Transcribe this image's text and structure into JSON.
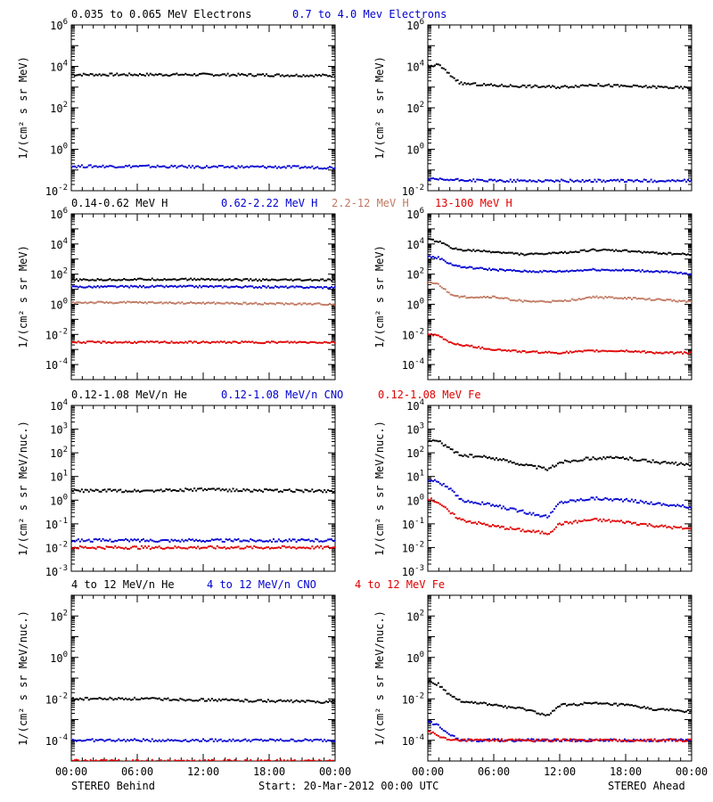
{
  "footer": {
    "left": "STEREO Behind",
    "center": "Start: 20-Mar-2012 00:00 UTC",
    "right": "STEREO Ahead"
  },
  "colors": {
    "black": "#000000",
    "blue": "#0000d0",
    "tan": "#c07860",
    "red": "#e00000"
  },
  "chart_data": [
    {
      "type": "scatter",
      "title_segments": [
        {
          "text": "0.035 to 0.065 MeV Electrons",
          "color": "#000000"
        },
        {
          "text": "0.7 to 4.0 Mev Electrons",
          "color": "#0000d0"
        }
      ],
      "ylabel": "1/(cm² s sr MeV)",
      "yscale": "log",
      "ylim": [
        -2,
        6
      ],
      "ytick_exponents": [
        -2,
        0,
        2,
        4,
        6
      ],
      "xlim": [
        "00:00",
        "24:00"
      ],
      "xtick_labels": [
        "00:00",
        "06:00",
        "12:00",
        "18:00",
        "00:00"
      ],
      "left": {
        "spacecraft": "STEREO Behind",
        "series": [
          {
            "color": "#000000",
            "x": [
              0,
              6,
              12,
              18,
              24
            ],
            "y": [
              4000,
              4000,
              4000,
              3800,
              3600
            ]
          },
          {
            "color": "#0000d0",
            "x": [
              0,
              6,
              12,
              18,
              24
            ],
            "y": [
              0.15,
              0.15,
              0.14,
              0.14,
              0.13
            ]
          }
        ]
      },
      "right": {
        "spacecraft": "STEREO Ahead",
        "series": [
          {
            "color": "#000000",
            "x": [
              0,
              1,
              2,
              3,
              6,
              9,
              12,
              15,
              18,
              21,
              24
            ],
            "y": [
              10000,
              12000,
              4000,
              1500,
              1200,
              1100,
              1000,
              1300,
              1100,
              1000,
              900
            ]
          },
          {
            "color": "#0000d0",
            "x": [
              0,
              6,
              12,
              18,
              24
            ],
            "y": [
              0.035,
              0.03,
              0.03,
              0.03,
              0.03
            ]
          }
        ]
      }
    },
    {
      "type": "scatter",
      "title_segments": [
        {
          "text": "0.14-0.62 MeV H",
          "color": "#000000"
        },
        {
          "text": "0.62-2.22 MeV H",
          "color": "#0000d0"
        },
        {
          "text": "2.2-12 MeV H",
          "color": "#c07860"
        },
        {
          "text": "13-100 MeV H",
          "color": "#e00000"
        }
      ],
      "ylabel": "1/(cm² s sr MeV)",
      "yscale": "log",
      "ylim": [
        -5,
        6
      ],
      "ytick_exponents": [
        -4,
        -2,
        0,
        2,
        4,
        6
      ],
      "xlim": [
        "00:00",
        "24:00"
      ],
      "xtick_labels": [
        "00:00",
        "06:00",
        "12:00",
        "18:00",
        "00:00"
      ],
      "left": {
        "spacecraft": "STEREO Behind",
        "series": [
          {
            "color": "#000000",
            "x": [
              0,
              6,
              12,
              18,
              24
            ],
            "y": [
              40,
              45,
              45,
              40,
              40
            ]
          },
          {
            "color": "#0000d0",
            "x": [
              0,
              6,
              12,
              18,
              24
            ],
            "y": [
              14,
              15,
              15,
              14,
              13
            ]
          },
          {
            "color": "#c07860",
            "x": [
              0,
              6,
              12,
              18,
              24
            ],
            "y": [
              1.3,
              1.3,
              1.2,
              1.1,
              1.0
            ]
          },
          {
            "color": "#e00000",
            "x": [
              0,
              6,
              12,
              18,
              24
            ],
            "y": [
              0.003,
              0.003,
              0.003,
              0.003,
              0.003
            ]
          }
        ]
      },
      "right": {
        "spacecraft": "STEREO Ahead",
        "series": [
          {
            "color": "#000000",
            "x": [
              0,
              1,
              2,
              3,
              6,
              9,
              12,
              15,
              18,
              21,
              24
            ],
            "y": [
              20000,
              15000,
              6000,
              4000,
              3000,
              2000,
              2500,
              4000,
              3500,
              2500,
              2000
            ]
          },
          {
            "color": "#0000d0",
            "x": [
              0,
              1,
              2,
              3,
              6,
              9,
              12,
              15,
              18,
              21,
              24
            ],
            "y": [
              1500,
              1200,
              500,
              300,
              200,
              150,
              150,
              200,
              180,
              150,
              100
            ]
          },
          {
            "color": "#c07860",
            "x": [
              0,
              1,
              2,
              3,
              6,
              9,
              12,
              15,
              18,
              21,
              24
            ],
            "y": [
              30,
              20,
              5,
              3,
              3,
              1.5,
              1.5,
              3,
              2.5,
              2,
              1.5
            ]
          },
          {
            "color": "#e00000",
            "x": [
              0,
              1,
              2,
              3,
              6,
              9,
              12,
              15,
              18,
              21,
              24
            ],
            "y": [
              0.01,
              0.008,
              0.003,
              0.002,
              0.001,
              0.0007,
              0.0006,
              0.0008,
              0.0008,
              0.0006,
              0.0006
            ]
          }
        ]
      }
    },
    {
      "type": "scatter",
      "title_segments": [
        {
          "text": "0.12-1.08 MeV/n He",
          "color": "#000000"
        },
        {
          "text": "0.12-1.08 MeV/n CNO",
          "color": "#0000d0"
        },
        {
          "text": "0.12-1.08 MeV Fe",
          "color": "#e00000"
        }
      ],
      "ylabel": "1/(cm² s sr MeV/nuc.)",
      "yscale": "log",
      "ylim": [
        -3,
        4
      ],
      "ytick_exponents": [
        -3,
        -2,
        -1,
        0,
        1,
        2,
        3,
        4
      ],
      "xlim": [
        "00:00",
        "24:00"
      ],
      "xtick_labels": [
        "00:00",
        "06:00",
        "12:00",
        "18:00",
        "00:00"
      ],
      "left": {
        "spacecraft": "STEREO Behind",
        "series": [
          {
            "color": "#000000",
            "x": [
              0,
              6,
              12,
              18,
              24
            ],
            "y": [
              2.5,
              2.5,
              2.8,
              2.5,
              2.5
            ]
          },
          {
            "color": "#0000d0",
            "x": [
              0,
              6,
              12,
              18,
              24
            ],
            "y": [
              0.02,
              0.02,
              0.02,
              0.02,
              0.02
            ]
          },
          {
            "color": "#e00000",
            "x": [
              0,
              6,
              12,
              18,
              24
            ],
            "y": [
              0.01,
              0.01,
              0.01,
              0.01,
              0.01
            ]
          }
        ]
      },
      "right": {
        "spacecraft": "STEREO Ahead",
        "series": [
          {
            "color": "#000000",
            "x": [
              0,
              1,
              2,
              3,
              6,
              9,
              11,
              12,
              15,
              18,
              21,
              24
            ],
            "y": [
              350,
              300,
              150,
              80,
              60,
              30,
              20,
              40,
              60,
              60,
              40,
              30
            ]
          },
          {
            "color": "#0000d0",
            "x": [
              0,
              1,
              2,
              3,
              6,
              9,
              11,
              12,
              15,
              18,
              21,
              24
            ],
            "y": [
              7,
              6,
              3,
              1,
              0.6,
              0.3,
              0.2,
              0.8,
              1.2,
              1.0,
              0.7,
              0.5
            ]
          },
          {
            "color": "#e00000",
            "x": [
              0,
              1,
              2,
              3,
              6,
              9,
              11,
              12,
              15,
              18,
              21,
              24
            ],
            "y": [
              1.2,
              0.8,
              0.3,
              0.15,
              0.08,
              0.05,
              0.04,
              0.1,
              0.15,
              0.12,
              0.08,
              0.06
            ]
          }
        ]
      }
    },
    {
      "type": "scatter",
      "title_segments": [
        {
          "text": "4 to 12 MeV/n He",
          "color": "#000000"
        },
        {
          "text": "4 to 12 MeV/n CNO",
          "color": "#0000d0"
        },
        {
          "text": "4 to 12 MeV Fe",
          "color": "#e00000"
        }
      ],
      "ylabel": "1/(cm² s sr MeV/nuc.)",
      "yscale": "log",
      "ylim": [
        -5,
        3
      ],
      "ytick_exponents": [
        -4,
        -2,
        0,
        2
      ],
      "xlim": [
        "00:00",
        "24:00"
      ],
      "xtick_labels": [
        "00:00",
        "06:00",
        "12:00",
        "18:00",
        "00:00"
      ],
      "left": {
        "spacecraft": "STEREO Behind",
        "series": [
          {
            "color": "#000000",
            "x": [
              0,
              6,
              12,
              18,
              24
            ],
            "y": [
              0.01,
              0.01,
              0.009,
              0.008,
              0.007
            ]
          },
          {
            "color": "#0000d0",
            "x": [
              0,
              6,
              12,
              18,
              24
            ],
            "y": [
              0.0001,
              0.0001,
              0.0001,
              0.0001,
              0.0001
            ]
          },
          {
            "color": "#e00000",
            "x": [
              0,
              6,
              12,
              18,
              24
            ],
            "y": [
              1e-05,
              1e-05,
              1e-05,
              1e-05,
              1e-05
            ]
          }
        ]
      },
      "right": {
        "spacecraft": "STEREO Ahead",
        "series": [
          {
            "color": "#000000",
            "x": [
              0,
              1,
              2,
              3,
              6,
              9,
              11,
              12,
              15,
              18,
              21,
              24
            ],
            "y": [
              0.07,
              0.05,
              0.015,
              0.008,
              0.005,
              0.003,
              0.0015,
              0.005,
              0.006,
              0.005,
              0.003,
              0.0025
            ]
          },
          {
            "color": "#0000d0",
            "x": [
              0,
              1,
              2,
              3,
              6,
              9,
              12,
              15,
              18,
              21,
              24
            ],
            "y": [
              0.0008,
              0.0005,
              0.0002,
              0.0001,
              0.0001,
              0.0001,
              0.0001,
              0.0001,
              0.0001,
              0.0001,
              0.0001
            ]
          },
          {
            "color": "#e00000",
            "x": [
              0,
              1,
              2,
              3,
              6,
              12,
              18,
              24
            ],
            "y": [
              0.0003,
              0.00015,
              0.0001,
              0.0001,
              0.0001,
              0.0001,
              0.0001,
              0.0001
            ]
          }
        ]
      }
    }
  ]
}
